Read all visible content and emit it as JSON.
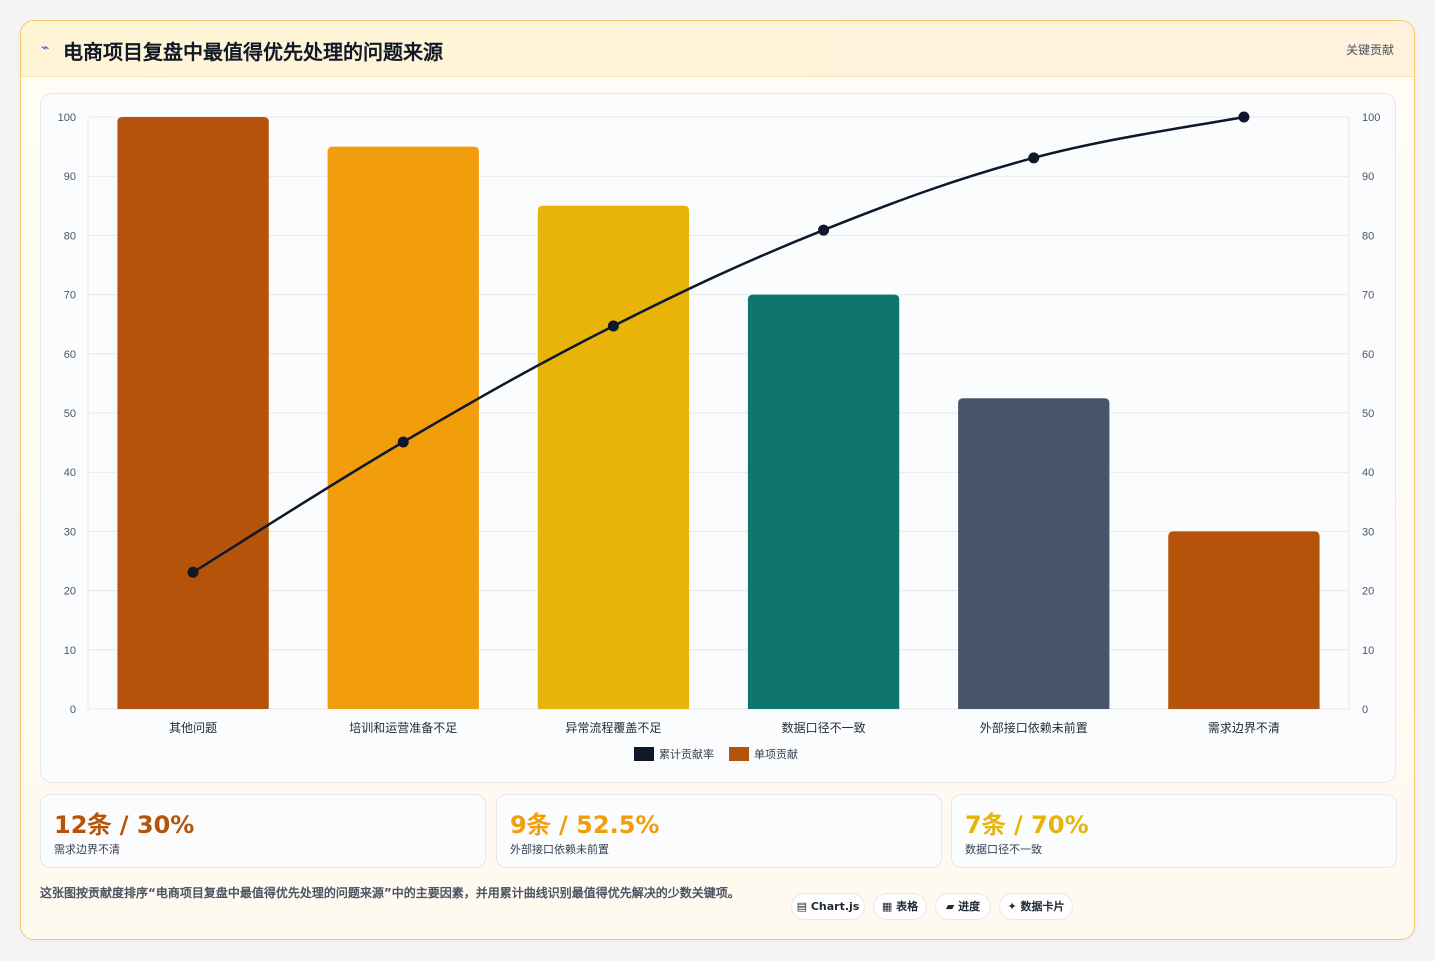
{
  "header": {
    "icon": "bolt-icon",
    "title": "电商项目复盘中最值得优先处理的问题来源",
    "tag": "关键贡献"
  },
  "chart_data": {
    "type": "bar",
    "categories": [
      "其他问题",
      "培训和运营准备不足",
      "异常流程覆盖不足",
      "数据口径不一致",
      "外部接口依赖未前置",
      "需求边界不清"
    ],
    "series": [
      {
        "name": "单项贡献",
        "type": "bar",
        "values": [
          100,
          95,
          85,
          70,
          52.5,
          30
        ],
        "colors": [
          "#b45309",
          "#f29d0c",
          "#e8b40a",
          "#0f766e",
          "#475569",
          "#b45309"
        ]
      },
      {
        "name": "累计贡献率",
        "type": "line",
        "values": [
          23.1,
          45.1,
          64.7,
          80.9,
          93.1,
          100
        ],
        "color": "#0f172a"
      }
    ],
    "ylim": [
      0,
      100
    ],
    "y_ticks": [
      0,
      10,
      20,
      30,
      40,
      50,
      60,
      70,
      80,
      90,
      100
    ],
    "y2lim": [
      0,
      100
    ],
    "grid": true,
    "legend": "bottom"
  },
  "stats": [
    {
      "value": "12条 / 30%",
      "label": "需求边界不清",
      "color": "#b45309"
    },
    {
      "value": "9条 / 52.5%",
      "label": "外部接口依赖未前置",
      "color": "#f29d0c"
    },
    {
      "value": "7条 / 70%",
      "label": "数据口径不一致",
      "color": "#e8b40a"
    }
  ],
  "note": "这张图按贡献度排序“电商项目复盘中最值得优先处理的问题来源”中的主要因素，并用累计曲线识别最值得优先解决的少数关键项。",
  "pills": [
    {
      "icon": "chart-icon",
      "label": "▤ Chart.js"
    },
    {
      "icon": "table-icon",
      "label": "▦ 表格"
    },
    {
      "icon": "progress-icon",
      "label": "▰ 进度"
    },
    {
      "icon": "sparkle-icon",
      "label": "✦ 数据卡片"
    }
  ]
}
